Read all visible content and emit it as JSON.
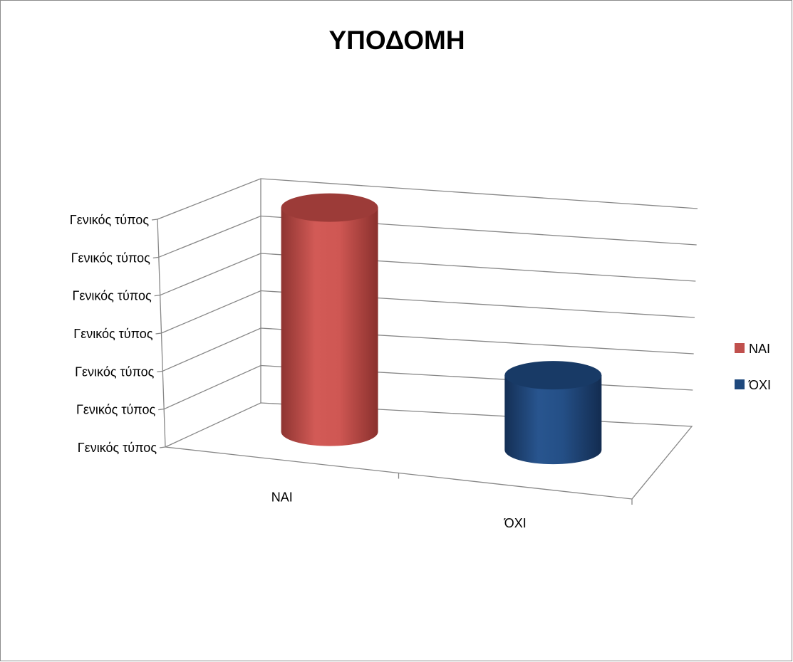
{
  "chart_data": {
    "type": "bar",
    "title": "ΥΠΟΔΟΜΗ",
    "xlabel": "",
    "ylabel": "",
    "categories": [
      "ΝΑΙ",
      "ΌΧΙ"
    ],
    "series": [
      {
        "name": "ΝΑΙ",
        "color": "#c0504d",
        "values": [
          6,
          null
        ]
      },
      {
        "name": "ΌΧΙ",
        "color": "#1f497d",
        "values": [
          null,
          2
        ]
      }
    ],
    "ylim": [
      0,
      6
    ],
    "y_tick_labels": [
      "Γενικός τύπος",
      "Γενικός τύπος",
      "Γενικός τύπος",
      "Γενικός τύπος",
      "Γενικός τύπος",
      "Γενικός τύπος",
      "Γενικός τύπος"
    ],
    "grid": true,
    "legend": "right",
    "style": "3d-cylinder"
  }
}
